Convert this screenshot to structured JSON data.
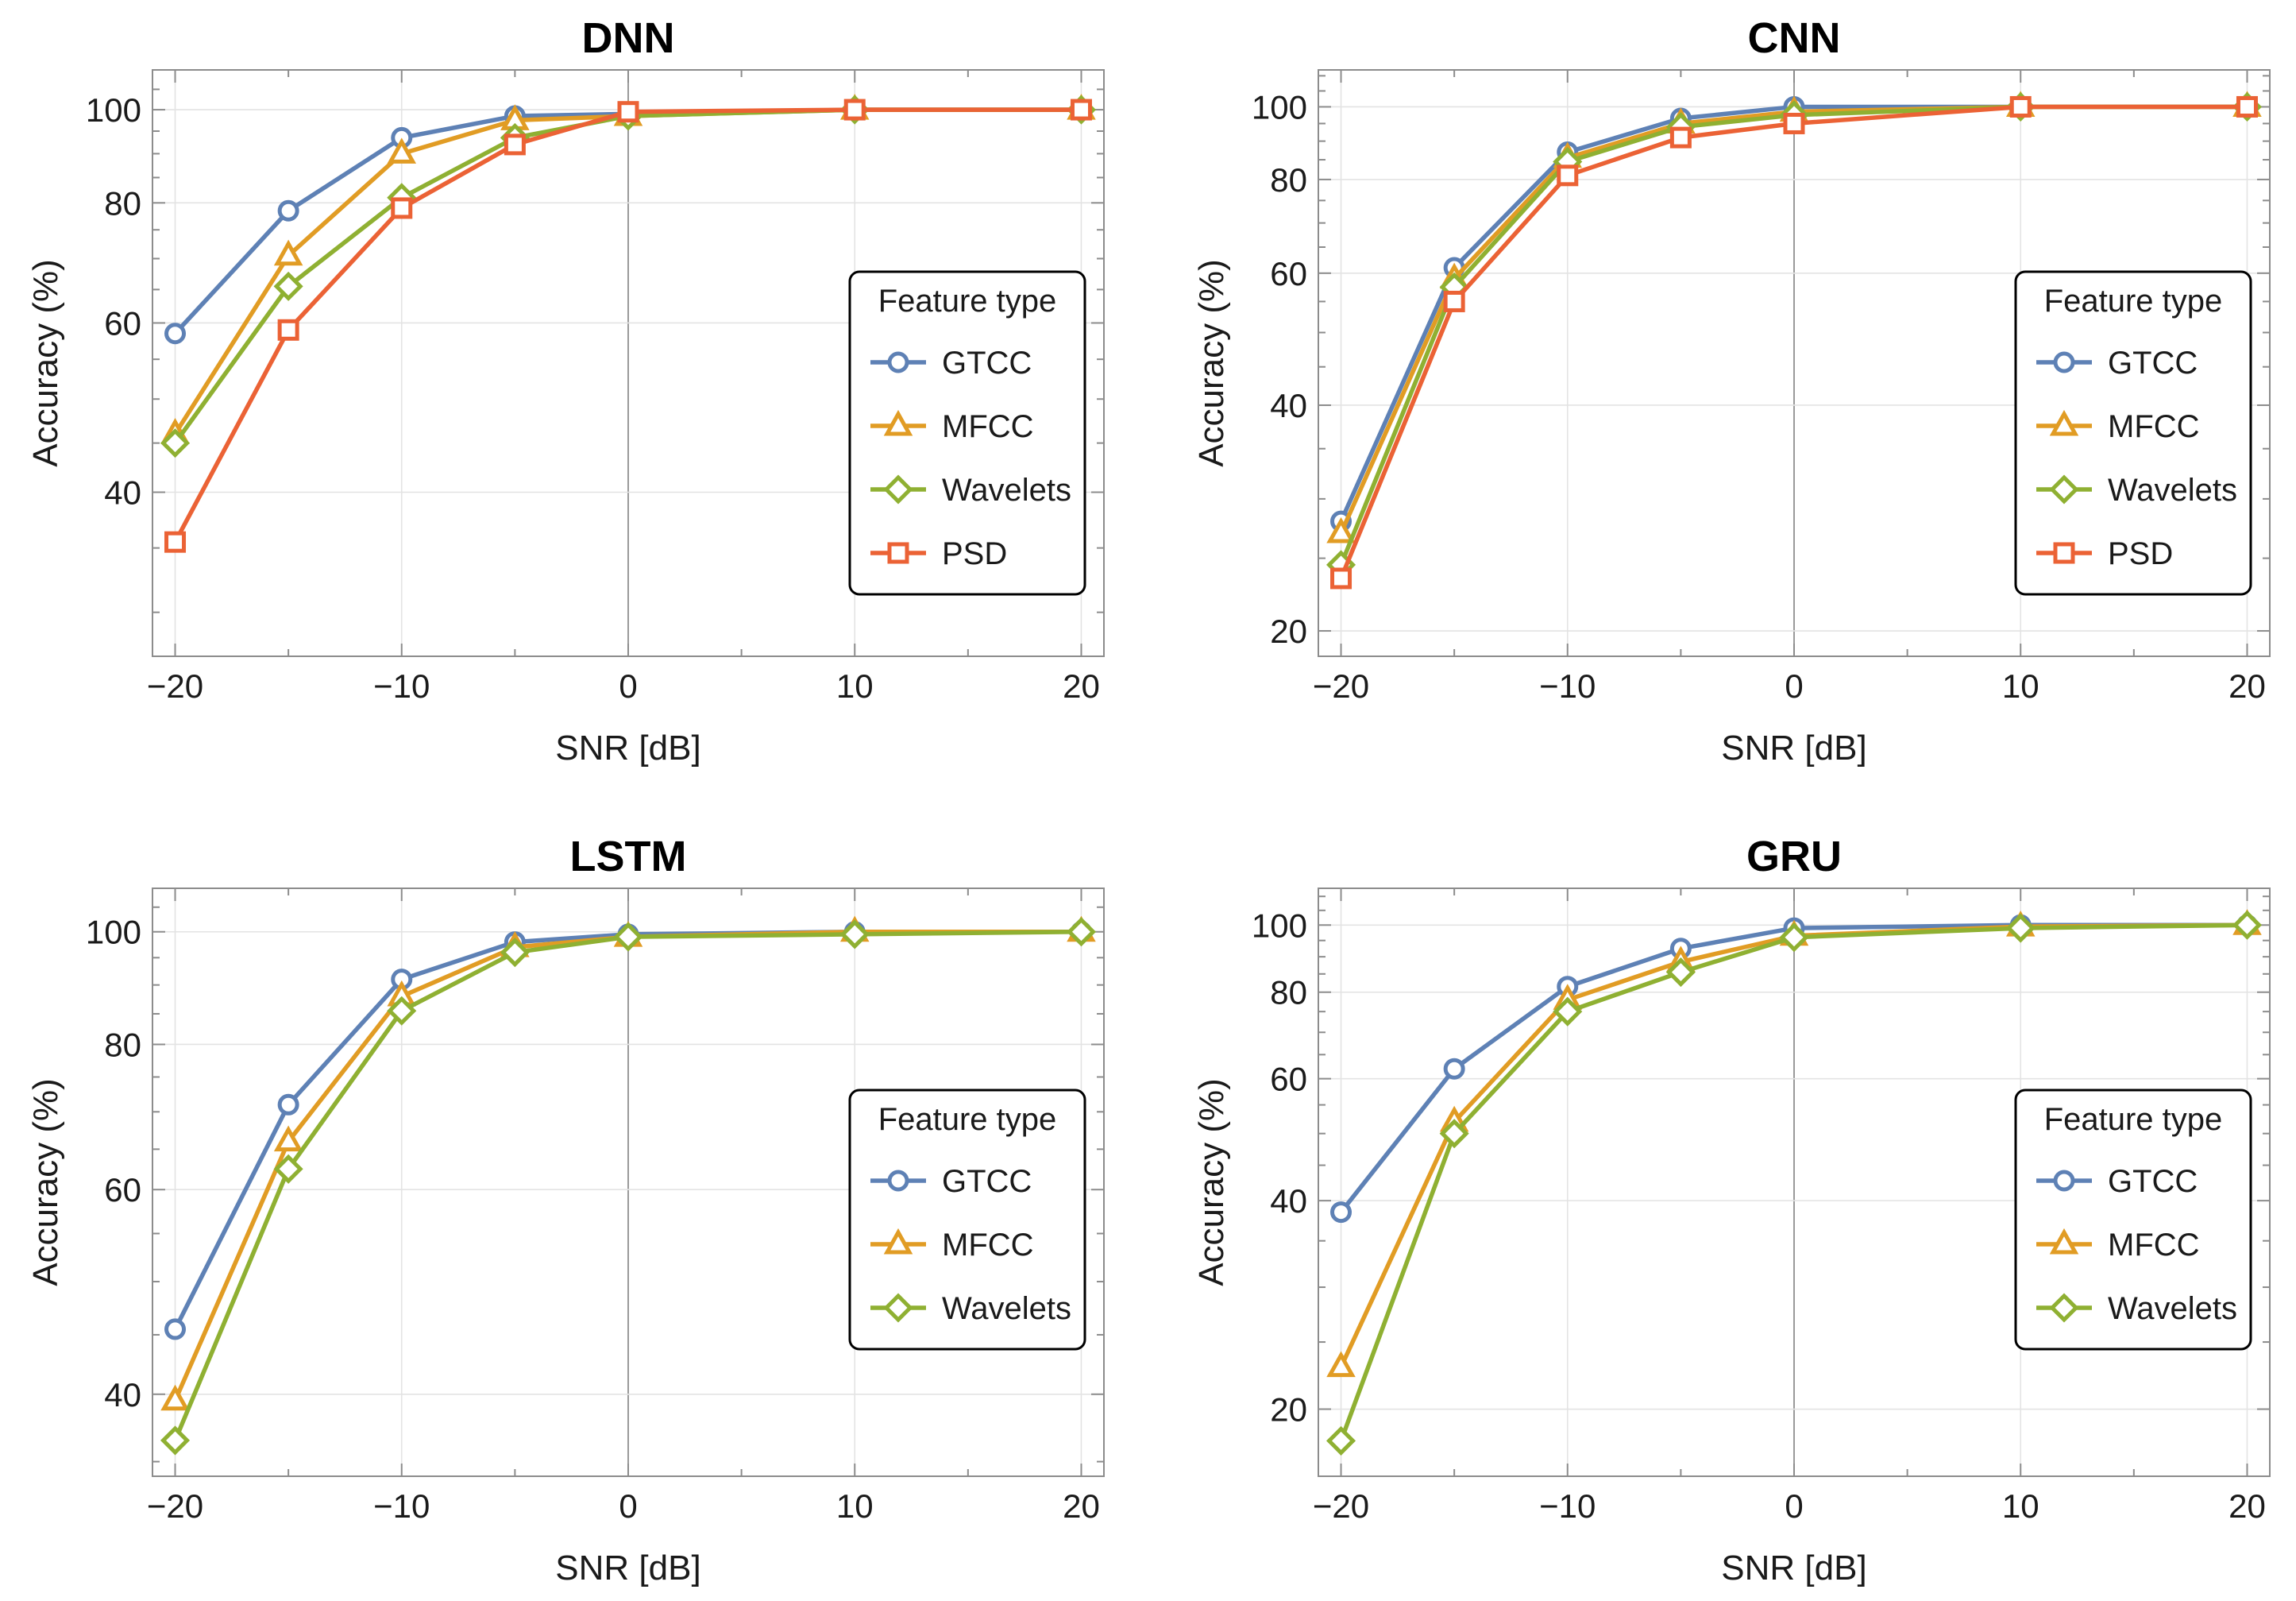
{
  "chart_data": [
    {
      "type": "line",
      "title": "DNN",
      "xlabel": "SNR [dB]",
      "ylabel": "Accuracy (%)",
      "xlim": [
        -21,
        21
      ],
      "ylim": [
        27,
        110
      ],
      "y_scale": "log",
      "grid": true,
      "x_ticks": [
        -20,
        -10,
        0,
        10,
        20
      ],
      "x_tick_labels": [
        "−20",
        "−10",
        "0",
        "10",
        "20"
      ],
      "y_ticks": [
        40,
        60,
        80,
        100
      ],
      "y_tick_labels": [
        "40",
        "60",
        "80",
        "100"
      ],
      "legend_title": "Feature type",
      "legend_position": "right",
      "x": [
        -20,
        -15,
        -10,
        -5,
        0,
        10,
        20
      ],
      "series": [
        {
          "name": "GTCC",
          "color": "#5e81b5",
          "marker": "circle",
          "values": [
            58.5,
            78.5,
            93.5,
            98.5,
            99.0,
            100,
            100
          ]
        },
        {
          "name": "MFCC",
          "color": "#e19c24",
          "marker": "triangle",
          "values": [
            46.0,
            70.5,
            90.0,
            97.5,
            98.5,
            100,
            100
          ]
        },
        {
          "name": "Wavelets",
          "color": "#8fb032",
          "marker": "diamond",
          "values": [
            45.0,
            65.5,
            81.0,
            93.5,
            98.5,
            100,
            100
          ]
        },
        {
          "name": "PSD",
          "color": "#eb6235",
          "marker": "square",
          "values": [
            35.5,
            59.0,
            79.0,
            92.0,
            99.5,
            100,
            100
          ]
        }
      ]
    },
    {
      "type": "line",
      "title": "CNN",
      "xlabel": "SNR [dB]",
      "ylabel": "Accuracy (%)",
      "xlim": [
        -21,
        21
      ],
      "ylim": [
        18.5,
        112
      ],
      "y_scale": "log",
      "grid": true,
      "x_ticks": [
        -20,
        -10,
        0,
        10,
        20
      ],
      "x_tick_labels": [
        "−20",
        "−10",
        "0",
        "10",
        "20"
      ],
      "y_ticks": [
        20,
        40,
        60,
        80,
        100
      ],
      "y_tick_labels": [
        "20",
        "40",
        "60",
        "80",
        "100"
      ],
      "legend_title": "Feature type",
      "legend_position": "right",
      "x": [
        -20,
        -15,
        -10,
        -5,
        0,
        10,
        20
      ],
      "series": [
        {
          "name": "GTCC",
          "color": "#5e81b5",
          "marker": "circle",
          "values": [
            28.0,
            61.0,
            87.0,
            96.5,
            100,
            100,
            100
          ]
        },
        {
          "name": "MFCC",
          "color": "#e19c24",
          "marker": "triangle",
          "values": [
            27.0,
            59.0,
            85.5,
            95.0,
            98.5,
            100,
            100
          ]
        },
        {
          "name": "Wavelets",
          "color": "#8fb032",
          "marker": "diamond",
          "values": [
            24.5,
            57.5,
            84.5,
            94.0,
            97.5,
            100,
            100
          ]
        },
        {
          "name": "PSD",
          "color": "#eb6235",
          "marker": "square",
          "values": [
            23.5,
            55.0,
            81.0,
            91.0,
            95.0,
            100,
            100
          ]
        }
      ]
    },
    {
      "type": "line",
      "title": "LSTM",
      "xlabel": "SNR [dB]",
      "ylabel": "Accuracy (%)",
      "xlim": [
        -21,
        21
      ],
      "ylim": [
        34,
        109
      ],
      "y_scale": "log",
      "grid": true,
      "x_ticks": [
        -20,
        -10,
        0,
        10,
        20
      ],
      "x_tick_labels": [
        "−20",
        "−10",
        "0",
        "10",
        "20"
      ],
      "y_ticks": [
        40,
        60,
        80,
        100
      ],
      "y_tick_labels": [
        "40",
        "60",
        "80",
        "100"
      ],
      "legend_title": "Feature type",
      "legend_position": "right",
      "x": [
        -20,
        -15,
        -10,
        -5,
        0,
        10,
        20
      ],
      "series": [
        {
          "name": "GTCC",
          "color": "#5e81b5",
          "marker": "circle",
          "values": [
            45.5,
            71.0,
            91.0,
            98.0,
            99.5,
            100,
            100
          ]
        },
        {
          "name": "MFCC",
          "color": "#e19c24",
          "marker": "triangle",
          "values": [
            39.5,
            66.0,
            88.0,
            97.0,
            99.0,
            100,
            100
          ]
        },
        {
          "name": "Wavelets",
          "color": "#8fb032",
          "marker": "diamond",
          "values": [
            36.5,
            62.5,
            85.5,
            96.0,
            99.0,
            99.5,
            100
          ]
        }
      ]
    },
    {
      "type": "line",
      "title": "GRU",
      "xlabel": "SNR [dB]",
      "ylabel": "Accuracy (%)",
      "xlim": [
        -21,
        21
      ],
      "ylim": [
        16,
        113
      ],
      "y_scale": "log",
      "grid": true,
      "x_ticks": [
        -20,
        -10,
        0,
        10,
        20
      ],
      "x_tick_labels": [
        "−20",
        "−10",
        "0",
        "10",
        "20"
      ],
      "y_ticks": [
        20,
        40,
        60,
        80,
        100
      ],
      "y_tick_labels": [
        "20",
        "40",
        "60",
        "80",
        "100"
      ],
      "legend_title": "Feature type",
      "legend_position": "right",
      "x": [
        -20,
        -15,
        -10,
        -5,
        0,
        10,
        20
      ],
      "series": [
        {
          "name": "GTCC",
          "color": "#5e81b5",
          "marker": "circle",
          "values": [
            38.5,
            62.0,
            81.5,
            92.5,
            99.0,
            100,
            100
          ]
        },
        {
          "name": "MFCC",
          "color": "#e19c24",
          "marker": "triangle",
          "values": [
            23.0,
            52.0,
            78.0,
            88.5,
            96.5,
            99.5,
            100
          ]
        },
        {
          "name": "Wavelets",
          "color": "#8fb032",
          "marker": "diamond",
          "values": [
            18.0,
            50.0,
            75.0,
            85.5,
            96.0,
            99.0,
            100
          ]
        }
      ]
    }
  ]
}
